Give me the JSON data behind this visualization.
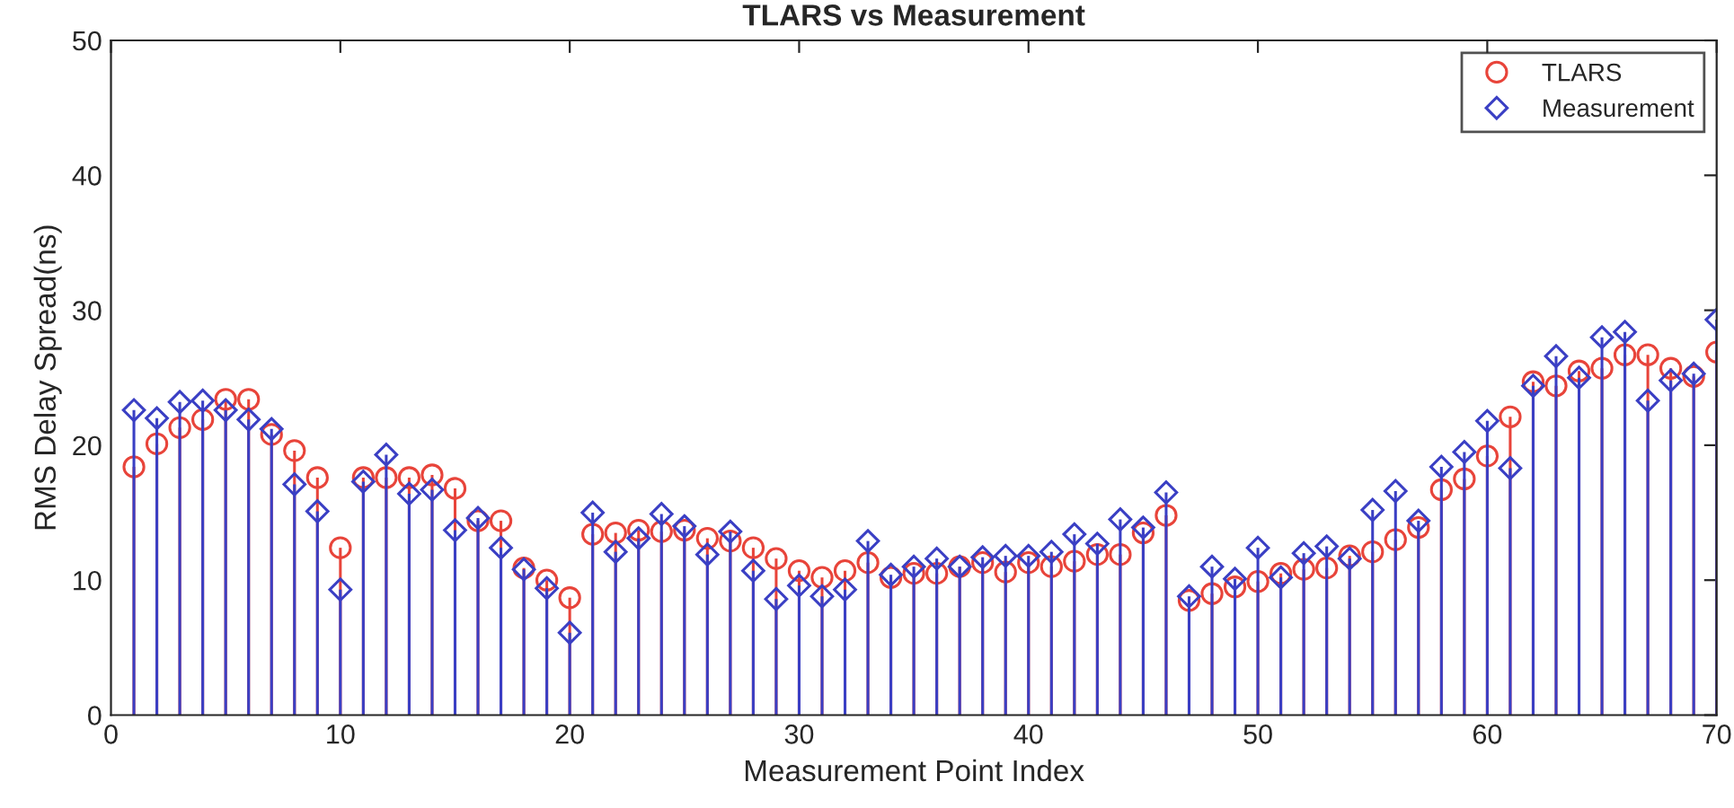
{
  "chart_data": {
    "type": "lollipop",
    "title": "TLARS vs Measurement",
    "xlabel": "Measurement Point Index",
    "ylabel": "RMS Delay Spread(ns)",
    "x": [
      1,
      2,
      3,
      4,
      5,
      6,
      7,
      8,
      9,
      10,
      11,
      12,
      13,
      14,
      15,
      16,
      17,
      18,
      19,
      20,
      21,
      22,
      23,
      24,
      25,
      26,
      27,
      28,
      29,
      30,
      31,
      32,
      33,
      34,
      35,
      36,
      37,
      38,
      39,
      40,
      41,
      42,
      43,
      44,
      45,
      46,
      47,
      48,
      49,
      50,
      51,
      52,
      53,
      54,
      55,
      56,
      57,
      58,
      59,
      60,
      61,
      62,
      63,
      64,
      65,
      66,
      67,
      68,
      69,
      70
    ],
    "series": [
      {
        "name": "TLARS",
        "color": "#e8443a",
        "marker": "circle",
        "values": [
          18.4,
          20.1,
          21.3,
          21.9,
          23.4,
          23.4,
          20.8,
          19.6,
          17.6,
          12.4,
          17.6,
          17.6,
          17.6,
          17.8,
          16.8,
          14.4,
          14.4,
          10.9,
          10.0,
          8.7,
          13.4,
          13.5,
          13.7,
          13.6,
          13.7,
          13.1,
          12.9,
          12.4,
          11.6,
          10.7,
          10.2,
          10.7,
          11.3,
          10.2,
          10.5,
          10.5,
          11.0,
          11.3,
          10.6,
          11.3,
          11.0,
          11.4,
          11.9,
          11.9,
          13.5,
          14.8,
          8.5,
          9.0,
          9.5,
          9.9,
          10.5,
          10.8,
          10.9,
          11.8,
          12.1,
          13.0,
          13.9,
          16.7,
          17.5,
          19.2,
          22.1,
          24.7,
          24.4,
          25.5,
          25.7,
          26.7,
          26.7,
          25.7,
          25.1,
          26.9
        ]
      },
      {
        "name": "Measurement",
        "color": "#3a3fc4",
        "marker": "diamond",
        "values": [
          22.6,
          22.0,
          23.2,
          23.3,
          22.6,
          21.9,
          21.2,
          17.1,
          15.1,
          9.3,
          17.3,
          19.3,
          16.4,
          16.7,
          13.7,
          14.6,
          12.4,
          10.8,
          9.4,
          6.1,
          15.0,
          12.1,
          13.1,
          14.9,
          14.0,
          11.9,
          13.6,
          10.7,
          8.6,
          9.6,
          8.8,
          9.3,
          12.9,
          10.4,
          11.0,
          11.6,
          11.0,
          11.7,
          11.8,
          11.8,
          12.1,
          13.4,
          12.7,
          14.5,
          13.9,
          16.5,
          8.8,
          11.0,
          10.1,
          12.4,
          10.2,
          12.0,
          12.5,
          11.6,
          15.2,
          16.6,
          14.4,
          18.4,
          19.5,
          21.8,
          18.3,
          24.4,
          26.6,
          25.0,
          28.0,
          28.4,
          23.3,
          24.8,
          25.3,
          29.3
        ]
      }
    ],
    "xlim": [
      0,
      70
    ],
    "xticks": [
      0,
      10,
      20,
      30,
      40,
      50,
      60,
      70
    ],
    "ylim": [
      0,
      50
    ],
    "yticks": [
      0,
      10,
      20,
      30,
      40,
      50
    ],
    "grid": false,
    "legend": "top right"
  }
}
